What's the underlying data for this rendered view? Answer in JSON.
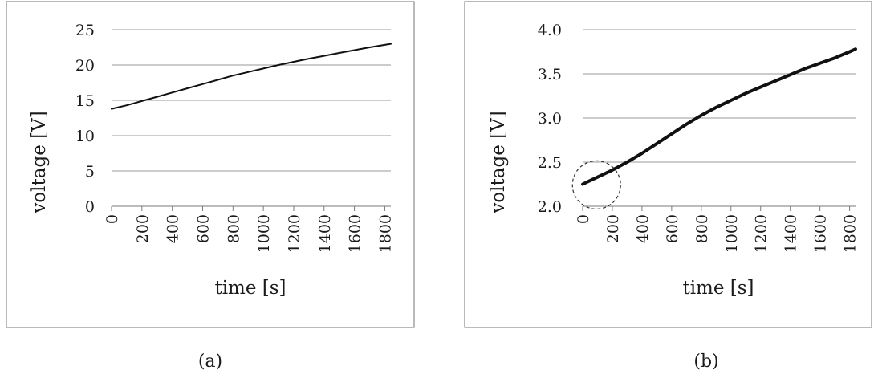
{
  "chart_data": [
    {
      "type": "line",
      "caption": "(a)",
      "xlabel": "time [s]",
      "ylabel": "voltage [V]",
      "xlim": [
        0,
        1840
      ],
      "ylim": [
        0,
        25
      ],
      "x_ticks": [
        0,
        200,
        400,
        600,
        800,
        1000,
        1200,
        1400,
        1600,
        1800
      ],
      "x_tick_labels": [
        "0",
        "200",
        "400",
        "600",
        "800",
        "1000",
        "1200",
        "1400",
        "1600",
        "1800"
      ],
      "y_ticks": [
        0,
        5,
        10,
        15,
        20,
        25
      ],
      "y_tick_labels": [
        "0",
        "5",
        "10",
        "15",
        "20",
        "25"
      ],
      "grid": "horizontal",
      "series": [
        {
          "x": [
            0,
            100,
            200,
            300,
            400,
            500,
            600,
            700,
            800,
            900,
            1000,
            1100,
            1200,
            1300,
            1400,
            1500,
            1600,
            1700,
            1800,
            1840
          ],
          "y": [
            13.8,
            14.3,
            14.9,
            15.5,
            16.1,
            16.7,
            17.3,
            17.9,
            18.5,
            19.0,
            19.5,
            20.0,
            20.45,
            20.9,
            21.3,
            21.7,
            22.1,
            22.5,
            22.85,
            23.0
          ]
        }
      ]
    },
    {
      "type": "line",
      "caption": "(b)",
      "xlabel": "time [s]",
      "ylabel": "voltage [V]",
      "xlim": [
        0,
        1840
      ],
      "ylim": [
        2.0,
        4.0
      ],
      "x_ticks": [
        0,
        200,
        400,
        600,
        800,
        1000,
        1200,
        1400,
        1600,
        1800
      ],
      "x_tick_labels": [
        "0",
        "200",
        "400",
        "600",
        "800",
        "1000",
        "1200",
        "1400",
        "1600",
        "1800"
      ],
      "y_ticks": [
        2.0,
        2.5,
        3.0,
        3.5,
        4.0
      ],
      "y_tick_labels": [
        "2.0",
        "2.5",
        "3.0",
        "3.5",
        "4.0"
      ],
      "grid": "horizontal",
      "annotation": {
        "shape": "dashed-circle",
        "center": [
          50,
          2.26
        ]
      },
      "series": [
        {
          "x": [
            0,
            50,
            100,
            200,
            300,
            400,
            500,
            600,
            700,
            800,
            900,
            1000,
            1100,
            1200,
            1300,
            1400,
            1500,
            1600,
            1700,
            1800,
            1840
          ],
          "y": [
            2.25,
            2.29,
            2.33,
            2.41,
            2.5,
            2.6,
            2.71,
            2.82,
            2.93,
            3.03,
            3.12,
            3.2,
            3.28,
            3.35,
            3.42,
            3.49,
            3.56,
            3.62,
            3.68,
            3.75,
            3.78
          ]
        }
      ]
    }
  ]
}
